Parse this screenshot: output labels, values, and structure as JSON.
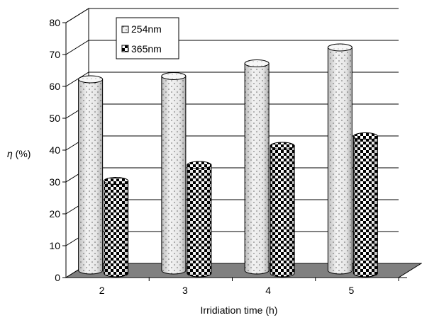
{
  "chart_data": {
    "type": "bar",
    "variant": "3d-cylinder",
    "categories": [
      "2",
      "3",
      "4",
      "5"
    ],
    "series": [
      {
        "name": "254nm",
        "values": [
          60,
          61,
          65,
          70
        ]
      },
      {
        "name": "365nm",
        "values": [
          29,
          34,
          40,
          43
        ]
      }
    ],
    "xlabel": "Irridiation time (h)",
    "ylabel_symbol": "η",
    "ylabel_unit": " (%)",
    "ylim": [
      0,
      80
    ],
    "yticks": [
      0,
      10,
      20,
      30,
      40,
      50,
      60,
      70,
      80
    ],
    "grid": true,
    "legend_position": "top-left"
  }
}
